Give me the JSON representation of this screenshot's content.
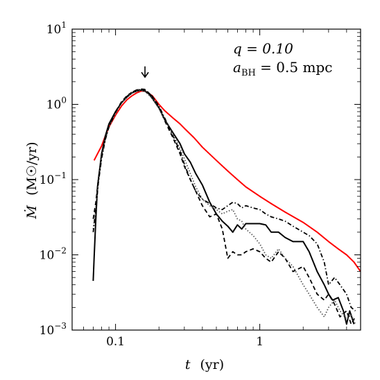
{
  "chart_data": {
    "type": "line",
    "title": "",
    "xlabel": "t",
    "xlabel_unit": "(yr)",
    "ylabel": "Ṁ",
    "ylabel_unit": "(M☉/yr)",
    "x_scale": "log",
    "y_scale": "log",
    "xlim": [
      0.05,
      5.0
    ],
    "ylim": [
      0.001,
      10
    ],
    "x_ticks": [
      {
        "value": 0.1,
        "label": "0.1"
      },
      {
        "value": 1,
        "label": "1"
      }
    ],
    "y_ticks": [
      {
        "value": 0.001,
        "base": "10",
        "exp": "−3"
      },
      {
        "value": 0.01,
        "base": "10",
        "exp": "−2"
      },
      {
        "value": 0.1,
        "base": "10",
        "exp": "−1"
      },
      {
        "value": 1,
        "base": "10",
        "exp": "0"
      },
      {
        "value": 10,
        "base": "10",
        "exp": "1"
      }
    ],
    "grid": false,
    "annotations": {
      "q_text": "q = 0.10",
      "a_text": "a",
      "a_sub": "BH",
      "a_value": " = 0.5 mpc",
      "arrow_x": 0.16,
      "arrow_y_top": 3.2,
      "arrow_y_bottom": 2.3
    },
    "series": [
      {
        "style": "solid",
        "color": "#ff0000",
        "x": [
          0.071,
          0.075,
          0.08,
          0.085,
          0.09,
          0.1,
          0.11,
          0.12,
          0.13,
          0.14,
          0.15,
          0.16,
          0.18,
          0.2,
          0.22,
          0.25,
          0.28,
          0.3,
          0.35,
          0.4,
          0.5,
          0.6,
          0.7,
          0.8,
          1.0,
          1.2,
          1.5,
          2.0,
          2.5,
          3.0,
          3.5,
          4.0,
          4.5,
          5.0
        ],
        "y": [
          0.18,
          0.22,
          0.28,
          0.38,
          0.5,
          0.72,
          0.95,
          1.15,
          1.3,
          1.42,
          1.5,
          1.5,
          1.3,
          1.0,
          0.82,
          0.66,
          0.55,
          0.48,
          0.36,
          0.27,
          0.18,
          0.13,
          0.1,
          0.08,
          0.06,
          0.048,
          0.037,
          0.027,
          0.02,
          0.015,
          0.012,
          0.01,
          0.008,
          0.006
        ]
      },
      {
        "style": "solid",
        "color": "#000000",
        "x": [
          0.07,
          0.071,
          0.073,
          0.075,
          0.08,
          0.085,
          0.09,
          0.1,
          0.11,
          0.12,
          0.13,
          0.14,
          0.15,
          0.16,
          0.17,
          0.18,
          0.2,
          0.22,
          0.25,
          0.28,
          0.3,
          0.33,
          0.36,
          0.4,
          0.45,
          0.5,
          0.55,
          0.6,
          0.65,
          0.7,
          0.75,
          0.8,
          0.9,
          1.0,
          1.1,
          1.2,
          1.35,
          1.5,
          1.7,
          2.0,
          2.2,
          2.5,
          2.8,
          3.0,
          3.2,
          3.5,
          3.8,
          4.0,
          4.2,
          4.5
        ],
        "y": [
          0.0045,
          0.009,
          0.03,
          0.08,
          0.22,
          0.38,
          0.55,
          0.8,
          1.05,
          1.25,
          1.42,
          1.5,
          1.55,
          1.5,
          1.38,
          1.2,
          0.9,
          0.62,
          0.42,
          0.3,
          0.22,
          0.17,
          0.12,
          0.085,
          0.05,
          0.035,
          0.028,
          0.024,
          0.02,
          0.025,
          0.022,
          0.026,
          0.026,
          0.026,
          0.025,
          0.02,
          0.02,
          0.017,
          0.015,
          0.015,
          0.011,
          0.006,
          0.004,
          0.003,
          0.0025,
          0.0027,
          0.0018,
          0.0012,
          0.0018,
          0.0012
        ]
      },
      {
        "style": "dashed",
        "color": "#000000",
        "x": [
          0.07,
          0.073,
          0.076,
          0.08,
          0.085,
          0.09,
          0.1,
          0.11,
          0.12,
          0.13,
          0.14,
          0.15,
          0.16,
          0.18,
          0.2,
          0.22,
          0.25,
          0.28,
          0.3,
          0.33,
          0.36,
          0.4,
          0.45,
          0.5,
          0.55,
          0.6,
          0.65,
          0.7,
          0.75,
          0.8,
          0.9,
          1.0,
          1.1,
          1.2,
          1.35,
          1.5,
          1.7,
          2.0,
          2.2,
          2.5,
          2.8,
          3.0,
          3.3,
          3.6,
          4.0,
          4.3,
          4.6
        ],
        "y": [
          0.03,
          0.05,
          0.1,
          0.2,
          0.35,
          0.52,
          0.8,
          1.08,
          1.3,
          1.45,
          1.55,
          1.6,
          1.58,
          1.28,
          0.92,
          0.6,
          0.36,
          0.22,
          0.15,
          0.1,
          0.07,
          0.045,
          0.032,
          0.035,
          0.022,
          0.009,
          0.011,
          0.01,
          0.01,
          0.011,
          0.012,
          0.011,
          0.009,
          0.008,
          0.011,
          0.009,
          0.006,
          0.007,
          0.005,
          0.003,
          0.0025,
          0.003,
          0.0022,
          0.0015,
          0.0018,
          0.0012,
          0.0015
        ]
      },
      {
        "style": "dotted",
        "color": "#555555",
        "x": [
          0.07,
          0.073,
          0.076,
          0.08,
          0.085,
          0.09,
          0.1,
          0.11,
          0.12,
          0.13,
          0.14,
          0.15,
          0.16,
          0.18,
          0.2,
          0.22,
          0.25,
          0.28,
          0.3,
          0.33,
          0.36,
          0.4,
          0.45,
          0.5,
          0.55,
          0.6,
          0.65,
          0.7,
          0.75,
          0.8,
          0.9,
          1.0,
          1.1,
          1.2,
          1.35,
          1.5,
          1.7,
          2.0,
          2.2,
          2.5,
          2.8,
          3.0,
          3.3,
          3.6,
          4.0,
          4.3,
          4.6
        ],
        "y": [
          0.022,
          0.04,
          0.09,
          0.2,
          0.35,
          0.5,
          0.75,
          1.05,
          1.25,
          1.42,
          1.5,
          1.52,
          1.48,
          1.2,
          0.88,
          0.62,
          0.4,
          0.26,
          0.19,
          0.12,
          0.08,
          0.055,
          0.045,
          0.04,
          0.035,
          0.038,
          0.04,
          0.03,
          0.028,
          0.022,
          0.018,
          0.014,
          0.01,
          0.009,
          0.012,
          0.009,
          0.007,
          0.004,
          0.003,
          0.002,
          0.0015,
          0.002,
          0.0025,
          0.0018,
          0.0014,
          0.0016,
          0.0012
        ]
      },
      {
        "style": "dashdot",
        "color": "#000000",
        "x": [
          0.07,
          0.073,
          0.076,
          0.08,
          0.085,
          0.09,
          0.1,
          0.11,
          0.12,
          0.13,
          0.14,
          0.15,
          0.16,
          0.18,
          0.2,
          0.22,
          0.25,
          0.28,
          0.3,
          0.33,
          0.36,
          0.4,
          0.45,
          0.5,
          0.55,
          0.6,
          0.65,
          0.7,
          0.75,
          0.8,
          0.9,
          1.0,
          1.1,
          1.2,
          1.35,
          1.5,
          1.7,
          2.0,
          2.2,
          2.5,
          2.8,
          3.0,
          3.3,
          3.6,
          4.0,
          4.3,
          4.6
        ],
        "y": [
          0.02,
          0.04,
          0.09,
          0.19,
          0.34,
          0.5,
          0.78,
          1.05,
          1.28,
          1.45,
          1.55,
          1.58,
          1.55,
          1.28,
          0.95,
          0.65,
          0.38,
          0.24,
          0.16,
          0.1,
          0.07,
          0.055,
          0.048,
          0.042,
          0.04,
          0.045,
          0.05,
          0.048,
          0.042,
          0.045,
          0.042,
          0.04,
          0.035,
          0.032,
          0.03,
          0.028,
          0.024,
          0.02,
          0.018,
          0.014,
          0.008,
          0.004,
          0.005,
          0.004,
          0.003,
          0.002,
          0.0018
        ]
      }
    ]
  }
}
